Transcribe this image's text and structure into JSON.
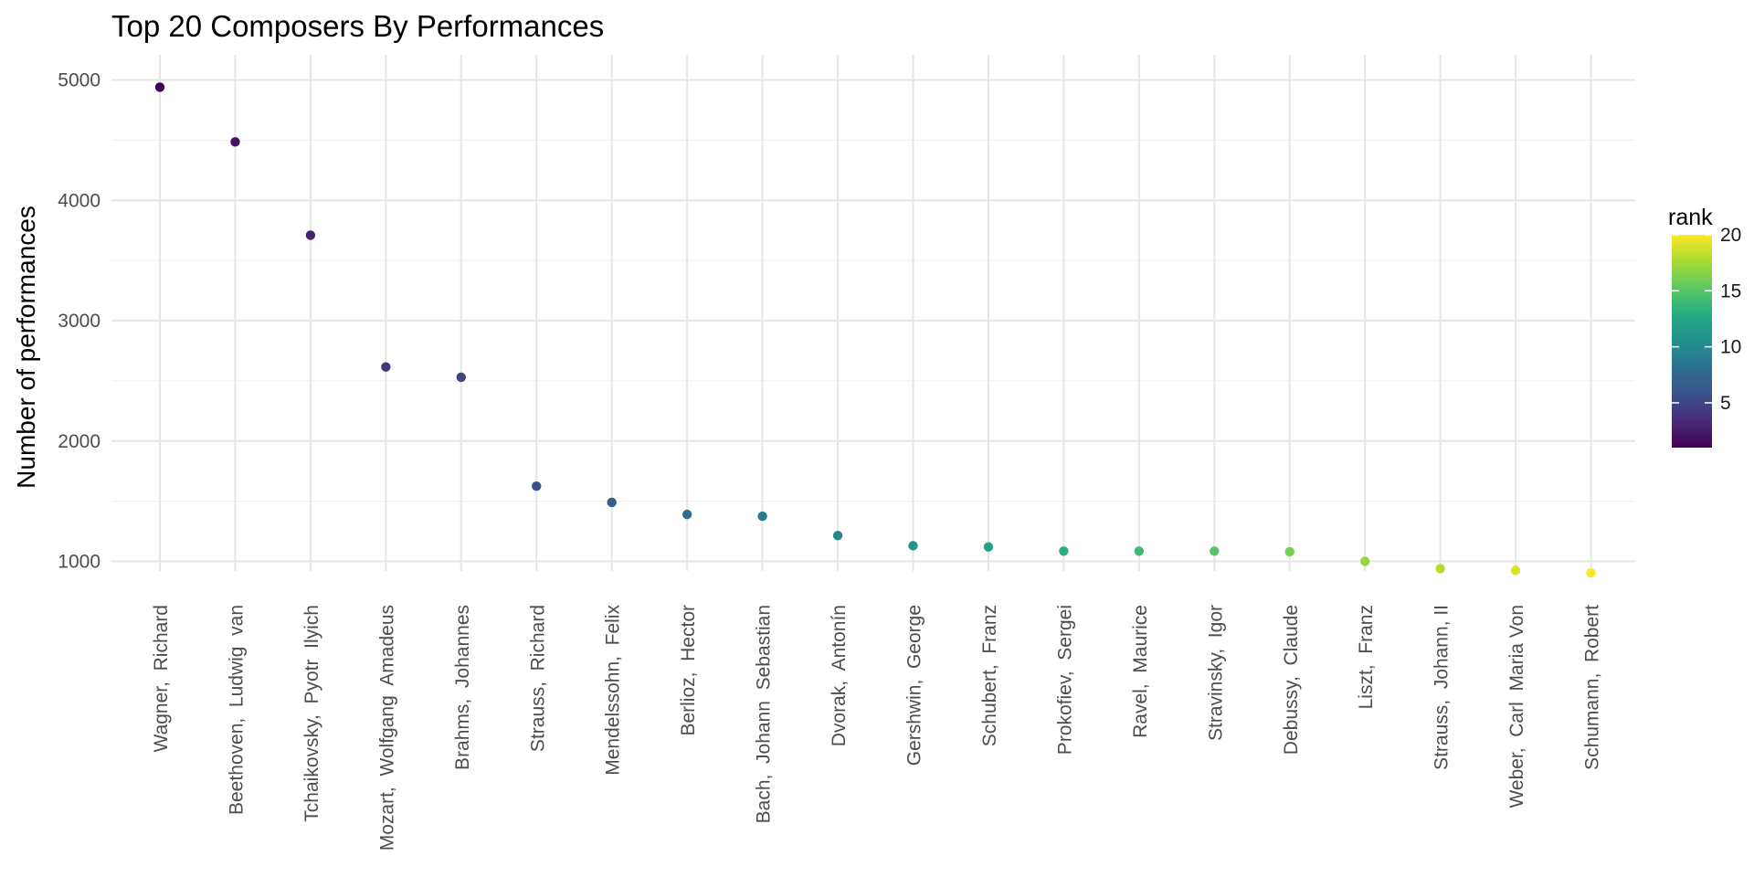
{
  "chart_data": {
    "type": "scatter",
    "title": "Top 20 Composers By Performances",
    "xlabel": "",
    "ylabel": "Number of performances",
    "ylim": [
      800,
      5100
    ],
    "yticks": [
      1000,
      2000,
      3000,
      4000,
      5000
    ],
    "grid": true,
    "legend": {
      "title": "rank",
      "placement": "right",
      "range": [
        1,
        20
      ],
      "ticks": [
        5,
        10,
        15,
        20
      ]
    },
    "categories": [
      "Wagner,  Richard",
      "Beethoven,  Ludwig  van",
      "Tchaikovsky,  Pyotr  Ilyich",
      "Mozart,  Wolfgang  Amadeus",
      "Brahms,  Johannes",
      "Strauss,  Richard",
      "Mendelssohn,  Felix",
      "Berlioz,  Hector",
      "Bach,  Johann  Sebastian",
      "Dvorak,  Antonín",
      "Gershwin,  George",
      "Schubert,  Franz",
      "Prokofiev,  Sergei",
      "Ravel,  Maurice",
      "Stravinsky,  Igor",
      "Debussy,  Claude",
      "Liszt,  Franz",
      "Strauss,  Johann, II",
      "Weber,  Carl  Maria Von",
      "Schumann,  Robert"
    ],
    "values": [
      4940,
      4485,
      3710,
      2615,
      2530,
      1625,
      1490,
      1390,
      1375,
      1215,
      1130,
      1120,
      1085,
      1085,
      1085,
      1080,
      1000,
      940,
      925,
      905
    ],
    "rank": [
      1,
      2,
      3,
      4,
      5,
      6,
      7,
      8,
      9,
      10,
      11,
      12,
      13,
      14,
      15,
      16,
      17,
      18,
      19,
      20
    ],
    "colormap": "viridis"
  }
}
